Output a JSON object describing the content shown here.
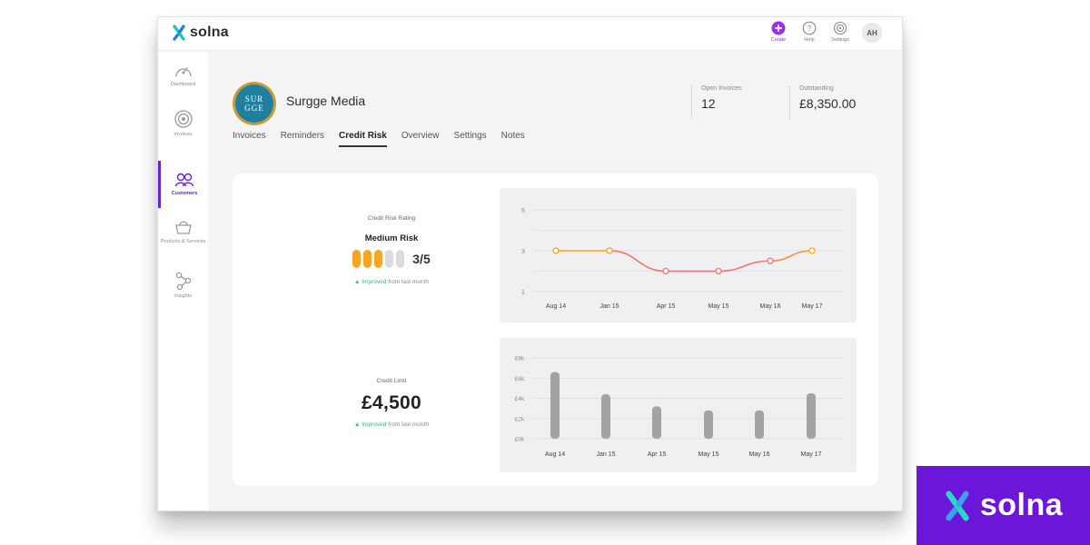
{
  "app": {
    "brand": "solna"
  },
  "topbar": {
    "actions": [
      {
        "label": "Create",
        "icon": "plus-circle-icon"
      },
      {
        "label": "Help",
        "icon": "help-icon"
      },
      {
        "label": "Settings",
        "icon": "settings-icon"
      }
    ],
    "avatar_initials": "AH"
  },
  "sidebar": {
    "items": [
      {
        "label": "Dashboard",
        "icon": "gauge-icon",
        "active": false
      },
      {
        "label": "Invoices",
        "icon": "invoice-target-icon",
        "active": false
      },
      {
        "label": "Customers",
        "icon": "customers-icon",
        "active": true
      },
      {
        "label": "Products & Services",
        "icon": "basket-icon",
        "active": false
      },
      {
        "label": "Insights",
        "icon": "insights-nodes-icon",
        "active": false
      }
    ]
  },
  "customer": {
    "name": "Surgge Media",
    "logo_line1": "SUR",
    "logo_line2": "GGE"
  },
  "tabs": [
    {
      "label": "Invoices",
      "active": false
    },
    {
      "label": "Reminders",
      "active": false
    },
    {
      "label": "Credit Risk",
      "active": true
    },
    {
      "label": "Overview",
      "active": false
    },
    {
      "label": "Settings",
      "active": false
    },
    {
      "label": "Notes",
      "active": false
    }
  ],
  "stats": {
    "open_invoices": {
      "label": "Open Invoices",
      "value": "12"
    },
    "outstanding": {
      "label": "Outstanding",
      "value": "£8,350.00"
    }
  },
  "credit_risk": {
    "title": "Credit Risk Rating",
    "heading": "Medium Risk",
    "score": "3/5",
    "level": 3,
    "max": 5,
    "improved": "▲ Improved",
    "improved_suffix": " from last month"
  },
  "credit_limit": {
    "title": "Credit Limit",
    "value": "£4,500",
    "improved": "▲ Improved",
    "improved_suffix": " from last month"
  },
  "colors": {
    "accent": "#6b1fd6",
    "create": "#9a2fe6",
    "rating_on": "#f5a623",
    "line_good": "#f5a623",
    "line_bad": "#f07272",
    "bar": "#a3a3a3",
    "improved": "#2fbf71",
    "badge_bg": "#6b16d8"
  },
  "chart_data": [
    {
      "type": "line",
      "categories": [
        "Aug 14",
        "Jan 15",
        "Apr 15",
        "May 15",
        "May 16",
        "May 17"
      ],
      "x": [
        "Aug 14",
        "Jan 15",
        "Apr 15",
        "May 15",
        "May 16",
        "May 17"
      ],
      "values": [
        3,
        3,
        2,
        2,
        2.5,
        3
      ],
      "yticks": [
        "1",
        "3",
        "5"
      ],
      "ylim": [
        1,
        5
      ],
      "grid": true
    },
    {
      "type": "bar",
      "categories": [
        "Aug 14",
        "Jan 15",
        "Apr 15",
        "May 15",
        "May 16",
        "May 17"
      ],
      "values": [
        6.6,
        4.4,
        3.2,
        2.8,
        2.8,
        4.5
      ],
      "yticks": [
        "£0k",
        "£2k",
        "£4k",
        "£6k",
        "£8k"
      ],
      "ylim": [
        0,
        8
      ],
      "grid": true
    }
  ],
  "badge": {
    "word": "solna"
  }
}
